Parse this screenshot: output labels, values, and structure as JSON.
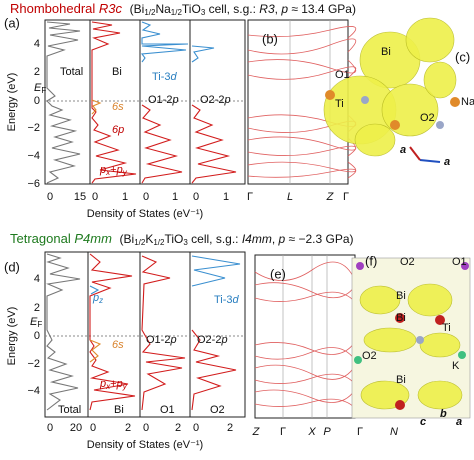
{
  "top": {
    "title_phase": "Rhombohedral",
    "title_group": "R3c",
    "cell": [
      "(Bi",
      "1/2",
      "Na",
      "1/2",
      "TiO",
      "3",
      " cell, s.g.: ",
      "R3",
      ", ",
      "p",
      " ≈ 13.4 GPa)"
    ],
    "dos_label": "(a)",
    "y_axis": "Energy (eV)",
    "yticks": [
      "4",
      "2",
      "0",
      "−2",
      "−4",
      "−6"
    ],
    "xticks": [
      "0",
      "15",
      "0",
      "1",
      "0",
      "1",
      "0",
      "1"
    ],
    "x_axis": "Density of States (eV⁻¹)",
    "ef": [
      "E",
      "F"
    ],
    "panels": [
      "Total",
      "Bi"
    ],
    "ti": [
      "Ti-3",
      "d"
    ],
    "o1": [
      "O1-2",
      "p"
    ],
    "o2": [
      "O2-2",
      "p"
    ],
    "s6": "6s",
    "p6": "6p",
    "pxy": [
      "p",
      "x",
      "+",
      "p",
      "y"
    ],
    "band_label": "(b)",
    "kpoints": [
      "Γ",
      "L",
      "Z",
      "Γ"
    ],
    "struct_label": "(c)",
    "atoms": [
      "Bi",
      "O1",
      "Ti",
      "O2",
      "Na"
    ],
    "axes": [
      "a",
      "a"
    ]
  },
  "bottom": {
    "title_phase": "Tetragonal",
    "title_group": "P4mm",
    "cell": [
      "(Bi",
      "1/2",
      "K",
      "1/2",
      "TiO",
      "3",
      " cell, s.g.: ",
      "I4mm",
      ", ",
      "p",
      " ≈ −2.3 GPa)"
    ],
    "dos_label": "(d)",
    "y_axis": "Energy (eV)",
    "yticks": [
      "4",
      "2",
      "0",
      "−2",
      "−4"
    ],
    "xticks": [
      "0",
      "20",
      "0",
      "2",
      "0",
      "2",
      "0",
      "2"
    ],
    "x_axis": "Density of States (eV⁻¹)",
    "ef": [
      "E",
      "F"
    ],
    "panels": [
      "Total",
      "Bi",
      "O1",
      "O2"
    ],
    "pz": [
      "p",
      "z"
    ],
    "ti": [
      "Ti-3",
      "d"
    ],
    "o1": [
      "O1-2",
      "p"
    ],
    "o2": [
      "O2-2",
      "p"
    ],
    "s6": "6s",
    "pxy": [
      "p",
      "x",
      "+",
      "p",
      "y"
    ],
    "band_label": "(e)",
    "kpoints": [
      "Z",
      "Γ",
      "X",
      "P",
      "Γ",
      "N"
    ],
    "struct_label": "(f)",
    "atoms": [
      "O2",
      "O1",
      "Bi",
      "Bi",
      "Ti",
      "O2",
      "K",
      "Bi"
    ],
    "axes": [
      "b",
      "c",
      "a"
    ]
  }
}
